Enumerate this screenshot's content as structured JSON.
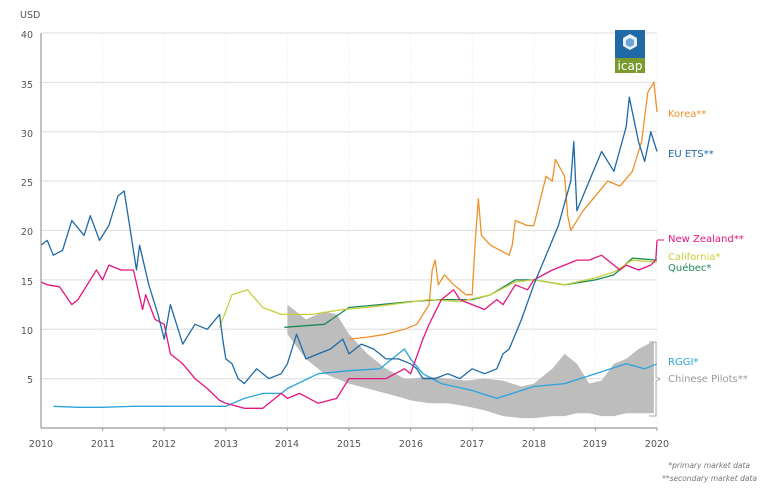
{
  "chart_data": {
    "type": "line",
    "title": "",
    "ylabel": "USD",
    "xlabel": "",
    "ylim": [
      0,
      40
    ],
    "xlim": [
      2010,
      2020
    ],
    "y_ticks": [
      "5",
      "10",
      "15",
      "20",
      "25",
      "30",
      "35",
      "40"
    ],
    "x_ticks": [
      "2010",
      "2011",
      "2012",
      "2013",
      "2014",
      "2015",
      "2016",
      "2017",
      "2018",
      "2019",
      "2020"
    ],
    "grid": true,
    "legend": "right",
    "series": [
      {
        "name": "Korea**",
        "color": "#f0902a",
        "x": [
          2015.0,
          2015.3,
          2015.6,
          2015.9,
          2016.1,
          2016.3,
          2016.35,
          2016.4,
          2016.45,
          2016.55,
          2016.7,
          2016.9,
          2017.0,
          2017.05,
          2017.1,
          2017.15,
          2017.3,
          2017.6,
          2017.65,
          2017.7,
          2017.9,
          2018.0,
          2018.2,
          2018.3,
          2018.35,
          2018.5,
          2018.55,
          2018.6,
          2018.8,
          2019.0,
          2019.2,
          2019.4,
          2019.6,
          2019.75,
          2019.85,
          2019.95,
          2020.0
        ],
        "values": [
          9.0,
          9.2,
          9.5,
          10.0,
          10.5,
          12.5,
          16.0,
          17.0,
          14.5,
          15.5,
          14.5,
          13.5,
          13.5,
          19.0,
          23.2,
          19.5,
          18.5,
          17.5,
          18.5,
          21.0,
          20.5,
          20.5,
          25.5,
          25.0,
          27.2,
          25.5,
          21.5,
          20.0,
          22.0,
          23.5,
          25.0,
          24.5,
          26.0,
          29.0,
          34.0,
          35.0,
          32.0
        ]
      },
      {
        "name": "EU ETS**",
        "color": "#1f6aa6",
        "x": [
          2010.0,
          2010.1,
          2010.2,
          2010.35,
          2010.5,
          2010.7,
          2010.8,
          2010.95,
          2011.1,
          2011.25,
          2011.35,
          2011.5,
          2011.55,
          2011.6,
          2011.75,
          2011.9,
          2012.0,
          2012.1,
          2012.3,
          2012.5,
          2012.7,
          2012.9,
          2012.95,
          2013.0,
          2013.1,
          2013.2,
          2013.3,
          2013.5,
          2013.7,
          2013.9,
          2014.0,
          2014.15,
          2014.3,
          2014.5,
          2014.7,
          2014.9,
          2015.0,
          2015.2,
          2015.4,
          2015.6,
          2015.8,
          2016.0,
          2016.1,
          2016.2,
          2016.4,
          2016.6,
          2016.8,
          2017.0,
          2017.2,
          2017.4,
          2017.5,
          2017.6,
          2017.8,
          2018.0,
          2018.2,
          2018.4,
          2018.6,
          2018.65,
          2018.7,
          2018.9,
          2019.1,
          2019.3,
          2019.5,
          2019.55,
          2019.7,
          2019.8,
          2019.9,
          2020.0
        ],
        "values": [
          18.5,
          19.0,
          17.5,
          18.0,
          21.0,
          19.5,
          21.5,
          19.0,
          20.5,
          23.5,
          24.0,
          18.0,
          16.0,
          18.5,
          14.5,
          11.5,
          9.0,
          12.5,
          8.5,
          10.5,
          10.0,
          11.5,
          9.0,
          7.0,
          6.5,
          5.0,
          4.5,
          6.0,
          5.0,
          5.5,
          6.5,
          9.5,
          7.0,
          7.5,
          8.0,
          9.0,
          7.5,
          8.5,
          8.0,
          7.0,
          7.0,
          6.5,
          6.0,
          5.0,
          5.0,
          5.5,
          5.0,
          6.0,
          5.5,
          6.0,
          7.5,
          8.0,
          11.0,
          14.5,
          17.5,
          20.5,
          25.0,
          29.0,
          22.0,
          25.0,
          28.0,
          26.0,
          30.5,
          33.5,
          29.0,
          27.0,
          30.0,
          28.0
        ]
      },
      {
        "name": "New Zealand**",
        "color": "#e5157e",
        "x": [
          2010.0,
          2010.1,
          2010.3,
          2010.5,
          2010.6,
          2010.75,
          2010.9,
          2011.0,
          2011.1,
          2011.3,
          2011.5,
          2011.65,
          2011.7,
          2011.85,
          2012.0,
          2012.1,
          2012.3,
          2012.5,
          2012.7,
          2012.9,
          2013.0,
          2013.3,
          2013.6,
          2013.9,
          2014.0,
          2014.2,
          2014.5,
          2014.8,
          2015.0,
          2015.3,
          2015.6,
          2015.9,
          2016.0,
          2016.2,
          2016.3,
          2016.5,
          2016.7,
          2016.8,
          2017.0,
          2017.2,
          2017.4,
          2017.5,
          2017.7,
          2017.9,
          2018.0,
          2018.3,
          2018.5,
          2018.7,
          2018.9,
          2019.1,
          2019.3,
          2019.4,
          2019.5,
          2019.7,
          2019.9,
          2019.98,
          2020.0
        ],
        "values": [
          14.8,
          14.5,
          14.3,
          12.5,
          13.0,
          14.5,
          16.0,
          15.0,
          16.5,
          16.0,
          16.0,
          12.0,
          13.5,
          11.0,
          10.5,
          7.5,
          6.5,
          5.0,
          4.0,
          2.8,
          2.5,
          2.0,
          2.0,
          3.5,
          3.0,
          3.5,
          2.5,
          3.0,
          5.0,
          5.0,
          5.0,
          6.0,
          5.5,
          9.0,
          10.5,
          13.0,
          14.0,
          13.0,
          12.5,
          12.0,
          13.0,
          12.5,
          14.5,
          14.0,
          15.0,
          16.0,
          16.5,
          17.0,
          17.0,
          17.5,
          16.5,
          16.0,
          16.5,
          16.0,
          16.5,
          17.0,
          19.0
        ]
      },
      {
        "name": "California*",
        "color": "#c8cf3a",
        "x": [
          2012.9,
          2013.1,
          2013.35,
          2013.6,
          2013.9,
          2014.4,
          2014.9,
          2015.3,
          2015.8,
          2016.3,
          2016.8,
          2017.3,
          2017.7,
          2018.0,
          2018.5,
          2019.0,
          2019.3,
          2019.6,
          2020.0
        ],
        "values": [
          10.2,
          13.5,
          14.0,
          12.2,
          11.5,
          11.5,
          12.0,
          12.2,
          12.6,
          13.0,
          12.8,
          13.5,
          14.8,
          15.0,
          14.5,
          15.2,
          15.8,
          17.0,
          16.8
        ]
      },
      {
        "name": "Québec*",
        "color": "#1b8a56",
        "x": [
          2013.95,
          2014.6,
          2015.0,
          2015.5,
          2016.0,
          2016.5,
          2017.0,
          2017.3,
          2017.7,
          2018.0,
          2018.5,
          2019.0,
          2019.3,
          2019.6,
          2020.0
        ],
        "values": [
          10.2,
          10.5,
          12.2,
          12.5,
          12.8,
          13.0,
          13.0,
          13.5,
          15.0,
          15.0,
          14.5,
          15.0,
          15.5,
          17.2,
          17.0
        ]
      },
      {
        "name": "RGGI*",
        "color": "#2aa3dc",
        "x": [
          2010.2,
          2010.6,
          2011.0,
          2011.5,
          2012.0,
          2012.5,
          2013.0,
          2013.3,
          2013.6,
          2013.9,
          2014.0,
          2014.5,
          2015.0,
          2015.5,
          2015.9,
          2016.0,
          2016.2,
          2016.5,
          2017.0,
          2017.4,
          2018.0,
          2018.5,
          2019.0,
          2019.5,
          2019.8,
          2020.0
        ],
        "values": [
          2.2,
          2.1,
          2.1,
          2.2,
          2.2,
          2.2,
          2.2,
          3.0,
          3.5,
          3.5,
          4.0,
          5.5,
          5.8,
          6.0,
          8.0,
          7.0,
          5.5,
          4.5,
          3.8,
          3.0,
          4.2,
          4.5,
          5.5,
          6.5,
          6.0,
          6.5
        ]
      },
      {
        "name": "Chinese Pilots**",
        "color": "#bdbdbd",
        "band": true,
        "x": [
          2014.0,
          2014.3,
          2014.6,
          2014.8,
          2015.0,
          2015.3,
          2015.6,
          2015.9,
          2016.0,
          2016.3,
          2016.6,
          2016.9,
          2017.2,
          2017.5,
          2017.8,
          2018.0,
          2018.3,
          2018.5,
          2018.7,
          2018.9,
          2019.1,
          2019.3,
          2019.5,
          2019.7,
          2019.85,
          2019.95
        ],
        "upper": [
          12.5,
          11.0,
          11.8,
          11.5,
          9.5,
          7.5,
          6.0,
          5.0,
          5.0,
          5.2,
          5.0,
          4.8,
          5.0,
          4.8,
          4.2,
          4.5,
          6.0,
          7.5,
          6.5,
          4.5,
          4.8,
          6.5,
          7.0,
          8.0,
          8.5,
          8.8
        ],
        "lower": [
          9.5,
          7.0,
          5.5,
          5.0,
          4.5,
          4.0,
          3.5,
          3.0,
          2.8,
          2.5,
          2.5,
          2.2,
          1.8,
          1.2,
          1.0,
          1.0,
          1.2,
          1.2,
          1.5,
          1.5,
          1.2,
          1.2,
          1.5,
          1.5,
          1.5,
          1.5
        ]
      }
    ],
    "logo_text": "icap",
    "footnotes": [
      "*primary market data",
      "**secondary market data"
    ]
  }
}
